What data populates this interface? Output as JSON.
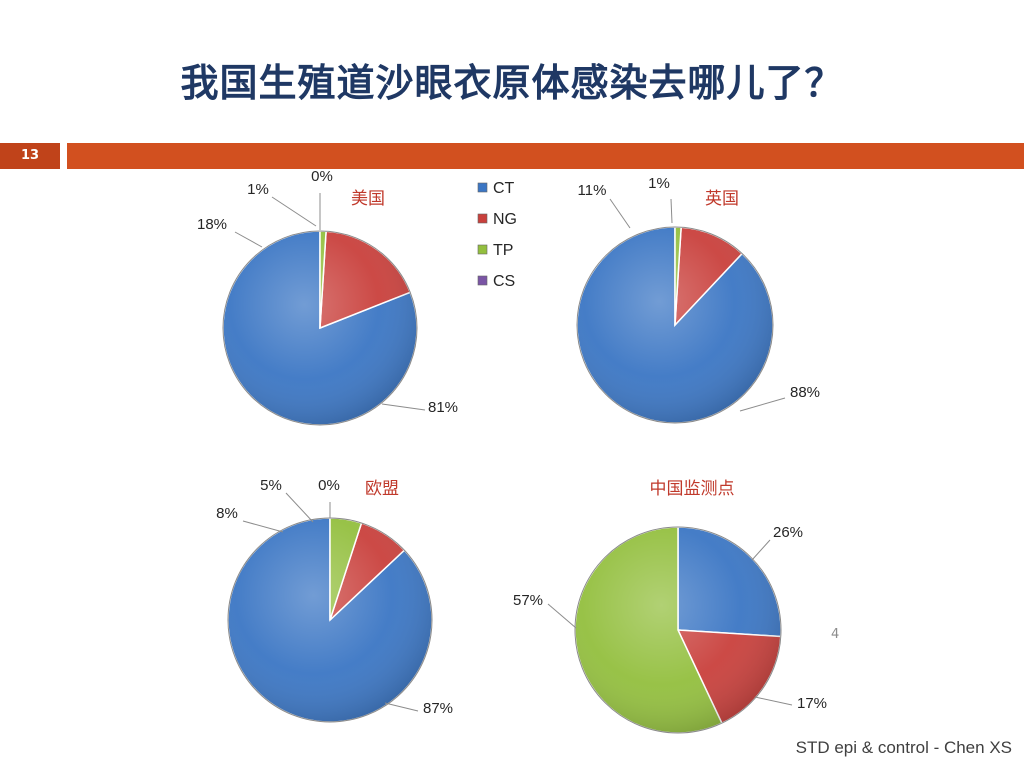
{
  "slide": {
    "title": "我国生殖道沙眼衣原体感染去哪儿了？",
    "page_badge": "13",
    "slide_number": "4",
    "footer": "STD epi & control - Chen XS"
  },
  "colors": {
    "title": "#1f3864",
    "accent_bar": "#d2501f",
    "chart_title": "#c0392b",
    "CT": "#3b76c4",
    "NG": "#c9403c",
    "TP": "#93bf3e",
    "CS": "#7a55a5"
  },
  "chart_data": [
    {
      "type": "pie",
      "title": "美国",
      "categories": [
        "CT",
        "NG",
        "TP",
        "CS"
      ],
      "values": [
        81,
        18,
        1,
        0
      ],
      "labels": [
        "81%",
        "18%",
        "1%",
        "0%"
      ],
      "legend": {
        "placement": "right",
        "entries": [
          "CT",
          "NG",
          "TP",
          "CS"
        ]
      }
    },
    {
      "type": "pie",
      "title": "英国",
      "categories": [
        "CT",
        "NG",
        "TP"
      ],
      "values": [
        88,
        11,
        1
      ],
      "labels": [
        "88%",
        "11%",
        "1%"
      ]
    },
    {
      "type": "pie",
      "title": "欧盟",
      "categories": [
        "CT",
        "NG",
        "TP",
        "CS"
      ],
      "values": [
        87,
        8,
        5,
        0
      ],
      "labels": [
        "87%",
        "8%",
        "5%",
        "0%"
      ]
    },
    {
      "type": "pie",
      "title": "中国监测点",
      "categories": [
        "CT",
        "NG",
        "TP"
      ],
      "values": [
        26,
        17,
        57
      ],
      "labels": [
        "26%",
        "17%",
        "57%"
      ]
    }
  ]
}
